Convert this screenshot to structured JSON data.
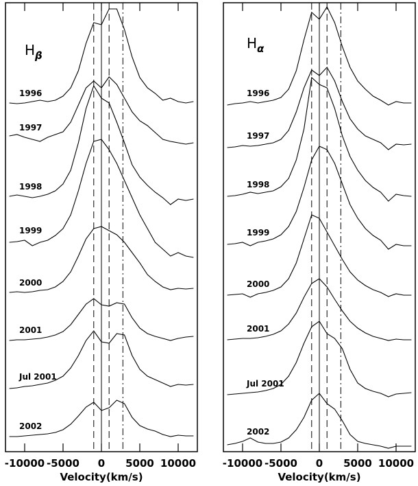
{
  "chart_data": [
    {
      "type": "line",
      "title": "H",
      "title_subscript": "β",
      "x_label": "Velocity(km/s)",
      "color": "#000000",
      "xlim": [
        -12500,
        12500
      ],
      "xticks": [
        -10000,
        -5000,
        0,
        5000,
        10000
      ],
      "ylim": [
        0,
        654
      ],
      "reference_lines": [
        {
          "x": -1000,
          "style": "dashed"
        },
        {
          "x": 0,
          "style": "solid"
        },
        {
          "x": 1000,
          "style": "dashed"
        },
        {
          "x": 2800,
          "style": "dashdot"
        }
      ],
      "x": [
        -12000,
        -11000,
        -10000,
        -9000,
        -8000,
        -7000,
        -6000,
        -5000,
        -4000,
        -3000,
        -2000,
        -1000,
        0,
        1000,
        2000,
        3000,
        4000,
        5000,
        6000,
        7000,
        8000,
        9000,
        10000,
        11000,
        12000
      ],
      "series": [
        {
          "name": "1996",
          "values": [
            508,
            507,
            508,
            510,
            512,
            510,
            512,
            518,
            530,
            555,
            595,
            625,
            622,
            645,
            645,
            615,
            575,
            545,
            530,
            522,
            512,
            515,
            510,
            508,
            510
          ]
        },
        {
          "name": "1997",
          "values": [
            460,
            462,
            458,
            455,
            452,
            458,
            462,
            466,
            480,
            505,
            530,
            540,
            530,
            546,
            535,
            515,
            495,
            482,
            475,
            465,
            455,
            452,
            450,
            448,
            450
          ]
        },
        {
          "name": "1998",
          "values": [
            372,
            374,
            372,
            370,
            372,
            375,
            380,
            390,
            410,
            450,
            500,
            533,
            515,
            508,
            480,
            450,
            418,
            400,
            388,
            378,
            370,
            360,
            368,
            366,
            368
          ]
        },
        {
          "name": "1999",
          "values": [
            305,
            306,
            308,
            300,
            305,
            308,
            315,
            325,
            345,
            380,
            420,
            452,
            455,
            440,
            420,
            395,
            370,
            345,
            325,
            305,
            295,
            285,
            290,
            285,
            283
          ]
        },
        {
          "name": "2000",
          "values": [
            232,
            233,
            232,
            233,
            235,
            236,
            240,
            248,
            262,
            285,
            310,
            325,
            328,
            322,
            316,
            305,
            290,
            275,
            258,
            248,
            240,
            236,
            238,
            237,
            238
          ]
        },
        {
          "name": "2001",
          "values": [
            162,
            163,
            163,
            164,
            165,
            167,
            170,
            175,
            185,
            200,
            215,
            223,
            214,
            212,
            217,
            215,
            195,
            180,
            172,
            168,
            165,
            162,
            165,
            167,
            168
          ]
        },
        {
          "name": "Jul 2001",
          "values": [
            92,
            93,
            95,
            96,
            98,
            100,
            104,
            110,
            122,
            140,
            162,
            176,
            160,
            158,
            172,
            170,
            140,
            120,
            110,
            105,
            100,
            95,
            98,
            97,
            98
          ]
        },
        {
          "name": "2002",
          "values": [
            22,
            22,
            23,
            24,
            25,
            26,
            28,
            32,
            40,
            52,
            65,
            72,
            60,
            64,
            75,
            70,
            50,
            38,
            33,
            30,
            25,
            22,
            24,
            23,
            23
          ]
        }
      ]
    },
    {
      "type": "line",
      "title": "H",
      "title_subscript": "α",
      "x_label": "Velocity(km/s)",
      "color": "#000000",
      "xlim": [
        -12500,
        12500
      ],
      "xticks": [
        -10000,
        -5000,
        0,
        5000,
        10000
      ],
      "ylim": [
        0,
        654
      ],
      "reference_lines": [
        {
          "x": -1000,
          "style": "dashed"
        },
        {
          "x": 0,
          "style": "solid"
        },
        {
          "x": 1000,
          "style": "dashed"
        },
        {
          "x": 2800,
          "style": "dashdot"
        }
      ],
      "x": [
        -12000,
        -11000,
        -10000,
        -9000,
        -8000,
        -7000,
        -6000,
        -5000,
        -4000,
        -3000,
        -2000,
        -1000,
        0,
        1000,
        2000,
        3000,
        4000,
        5000,
        6000,
        7000,
        8000,
        9000,
        10000,
        11000,
        12000
      ],
      "series": [
        {
          "name": "1996",
          "values": [
            505,
            507,
            508,
            510,
            508,
            510,
            512,
            516,
            528,
            555,
            600,
            640,
            630,
            648,
            625,
            590,
            560,
            540,
            528,
            518,
            512,
            505,
            510,
            508,
            508
          ]
        },
        {
          "name": "1997",
          "values": [
            443,
            444,
            446,
            445,
            446,
            448,
            450,
            455,
            468,
            495,
            530,
            556,
            548,
            560,
            540,
            510,
            485,
            470,
            460,
            455,
            450,
            440,
            448,
            447,
            448
          ]
        },
        {
          "name": "1998",
          "values": [
            372,
            373,
            375,
            378,
            376,
            378,
            380,
            386,
            398,
            425,
            470,
            545,
            535,
            530,
            500,
            460,
            430,
            410,
            395,
            385,
            378,
            365,
            375,
            373,
            372
          ]
        },
        {
          "name": "1999",
          "values": [
            302,
            303,
            305,
            300,
            305,
            307,
            310,
            316,
            328,
            350,
            385,
            425,
            445,
            440,
            420,
            390,
            360,
            340,
            325,
            315,
            308,
            295,
            302,
            300,
            300
          ]
        },
        {
          "name": "2000",
          "values": [
            228,
            229,
            230,
            225,
            230,
            232,
            235,
            240,
            252,
            275,
            310,
            345,
            340,
            320,
            300,
            280,
            262,
            250,
            242,
            236,
            232,
            226,
            230,
            228,
            228
          ]
        },
        {
          "name": "2001",
          "values": [
            163,
            164,
            165,
            165,
            166,
            168,
            171,
            176,
            186,
            202,
            225,
            245,
            252,
            240,
            222,
            205,
            190,
            180,
            173,
            168,
            165,
            162,
            164,
            163,
            163
          ]
        },
        {
          "name": "Jul 2001",
          "values": [
            83,
            84,
            85,
            86,
            87,
            89,
            92,
            98,
            110,
            130,
            158,
            182,
            190,
            172,
            165,
            150,
            120,
            100,
            92,
            88,
            85,
            80,
            84,
            85,
            86
          ]
        },
        {
          "name": "2002",
          "values": [
            10,
            12,
            15,
            20,
            14,
            12,
            12,
            14,
            20,
            32,
            50,
            75,
            85,
            70,
            62,
            45,
            25,
            15,
            12,
            10,
            8,
            5,
            8,
            8,
            8
          ]
        }
      ]
    }
  ]
}
